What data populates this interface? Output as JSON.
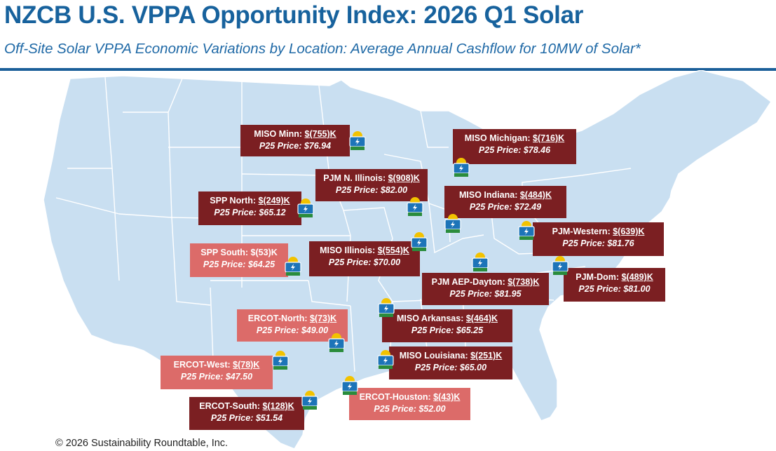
{
  "header": {
    "title": "NZCB U.S. VPPA Opportunity Index: 2026 Q1 Solar",
    "subtitle": "Off-Site Solar VPPA Economic Variations by Location: Average Annual Cashflow for 10MW of Solar*"
  },
  "footer": {
    "copyright": "© 2026 Sustainability Roundtable, Inc."
  },
  "colors": {
    "title": "#17629d",
    "map_fill": "#c9dff1",
    "map_borders": "#ffffff",
    "negative_dark": "#7b1f22",
    "negative_light": "#dc6b69",
    "icon_sun": "#f2c200",
    "icon_panel": "#1d74b8",
    "icon_base": "#2a8c3c"
  },
  "icons": {
    "location_marker": "solar-panel-sun-icon"
  },
  "regions": [
    {
      "id": "miso-minn",
      "name": "MISO Minn",
      "cashflow": "$(755)K",
      "price_label": "P25 Price: $76.94",
      "p25_price": 76.94,
      "shade": "dark"
    },
    {
      "id": "miso-michigan",
      "name": "MISO Michigan",
      "cashflow": "$(716)K",
      "price_label": "P25 Price: $78.46",
      "p25_price": 78.46,
      "shade": "dark"
    },
    {
      "id": "pjm-n-illinois",
      "name": "PJM N. Illinois",
      "cashflow": "$(908)K",
      "price_label": "P25 Price: $82.00",
      "p25_price": 82.0,
      "shade": "dark"
    },
    {
      "id": "spp-north",
      "name": "SPP North",
      "cashflow": "$(249)K",
      "price_label": "P25 Price: $65.12",
      "p25_price": 65.12,
      "shade": "dark"
    },
    {
      "id": "miso-indiana",
      "name": "MISO Indiana",
      "cashflow": "$(484)K",
      "price_label": "P25 Price: $72.49",
      "p25_price": 72.49,
      "shade": "dark"
    },
    {
      "id": "pjm-western",
      "name": "PJM-Western",
      "cashflow": "$(639)K",
      "price_label": "P25 Price: $81.76",
      "p25_price": 81.76,
      "shade": "dark"
    },
    {
      "id": "spp-south",
      "name": "SPP South",
      "cashflow": "$(53)K",
      "price_label": "P25 Price: $64.25",
      "p25_price": 64.25,
      "shade": "light"
    },
    {
      "id": "miso-illinois",
      "name": "MISO Illinois",
      "cashflow": "$(554)K",
      "price_label": "P25 Price: $70.00",
      "p25_price": 70.0,
      "shade": "dark"
    },
    {
      "id": "pjm-aep-dayton",
      "name": "PJM AEP-Dayton",
      "cashflow": "$(738)K",
      "price_label": "P25 Price: $81.95",
      "p25_price": 81.95,
      "shade": "dark"
    },
    {
      "id": "pjm-dom",
      "name": "PJM-Dom",
      "cashflow": "$(489)K",
      "price_label": "P25 Price: $81.00",
      "p25_price": 81.0,
      "shade": "dark"
    },
    {
      "id": "ercot-north",
      "name": "ERCOT-North",
      "cashflow": "$(73)K",
      "price_label": "P25 Price: $49.00",
      "p25_price": 49.0,
      "shade": "light"
    },
    {
      "id": "miso-arkansas",
      "name": "MISO Arkansas",
      "cashflow": "$(464)K",
      "price_label": "P25 Price: $65.25",
      "p25_price": 65.25,
      "shade": "dark"
    },
    {
      "id": "ercot-west",
      "name": "ERCOT-West",
      "cashflow": "$(78)K",
      "price_label": "P25 Price: $47.50",
      "p25_price": 47.5,
      "shade": "light"
    },
    {
      "id": "miso-louisiana",
      "name": "MISO Louisiana",
      "cashflow": "$(251)K",
      "price_label": "P25 Price: $65.00",
      "p25_price": 65.0,
      "shade": "dark"
    },
    {
      "id": "ercot-houston",
      "name": "ERCOT-Houston",
      "cashflow": "$(43)K",
      "price_label": "P25 Price: $52.00",
      "p25_price": 52.0,
      "shade": "light"
    },
    {
      "id": "ercot-south",
      "name": "ERCOT-South",
      "cashflow": "$(128)K",
      "price_label": "P25 Price: $51.54",
      "p25_price": 51.54,
      "shade": "dark"
    }
  ]
}
